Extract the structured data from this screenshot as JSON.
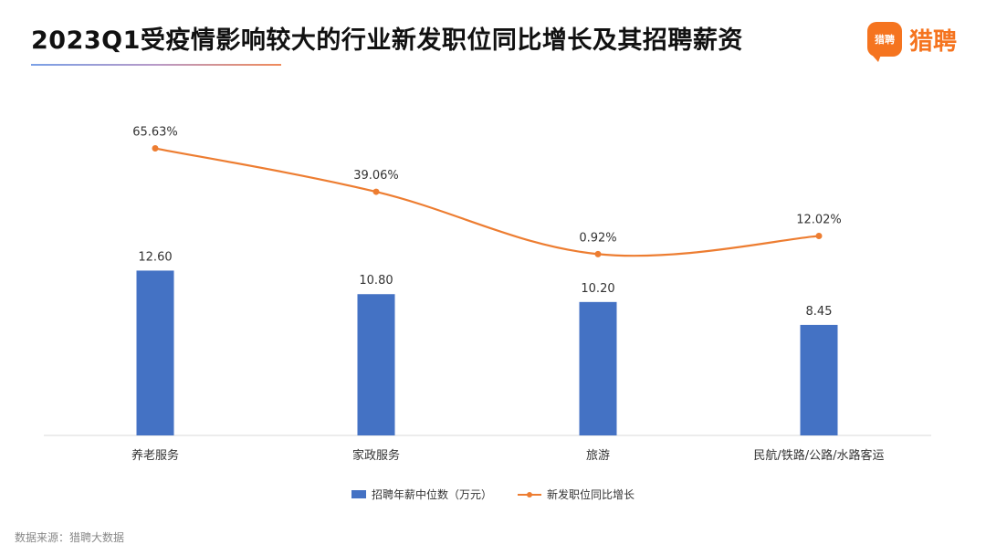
{
  "title": "2023Q1受疫情影响较大的行业新发职位同比增长及其招聘薪资",
  "logo": {
    "badge_text": "猎聘",
    "text": "猎聘"
  },
  "source": "数据来源：猎聘大数据",
  "legend": {
    "bar_label": "招聘年薪中位数（万元）",
    "line_label": "新发职位同比增长"
  },
  "colors": {
    "bar": "#4472c4",
    "line": "#ed7d31",
    "brand": "#f5741f"
  },
  "chart_data": {
    "type": "bar",
    "categories": [
      "养老服务",
      "家政服务",
      "旅游",
      "民航/铁路/公路/水路客运"
    ],
    "series": [
      {
        "name": "招聘年薪中位数（万元）",
        "type": "bar",
        "values": [
          12.6,
          10.8,
          10.2,
          8.45
        ],
        "labels": [
          "12.60",
          "10.80",
          "10.20",
          "8.45"
        ]
      },
      {
        "name": "新发职位同比增长",
        "type": "line",
        "values": [
          65.63,
          39.06,
          0.92,
          12.02
        ],
        "labels": [
          "65.63%",
          "39.06%",
          "0.92%",
          "12.02%"
        ]
      }
    ],
    "title": "2023Q1受疫情影响较大的行业新发职位同比增长及其招聘薪资",
    "xlabel": "",
    "ylabel": "",
    "grid": false,
    "legend_position": "bottom"
  }
}
